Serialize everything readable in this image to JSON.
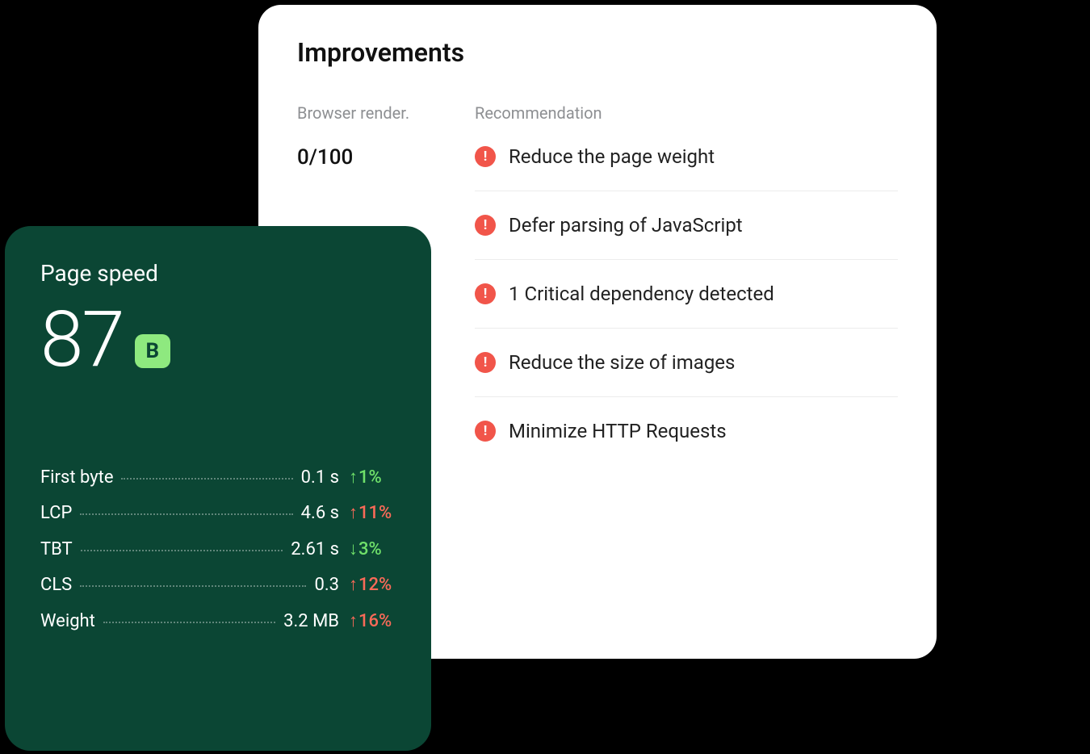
{
  "improvements": {
    "title": "Improvements",
    "columns": {
      "left_label": "Browser render.",
      "right_label": "Recommendation"
    },
    "render_score": "0/100",
    "alert_icon_color": "#f1554a",
    "recommendations": [
      {
        "text": "Reduce the page weight"
      },
      {
        "text": "Defer parsing of JavaScript"
      },
      {
        "text": "1 Critical dependency detected"
      },
      {
        "text": "Reduce the size of images"
      },
      {
        "text": "Minimize HTTP Requests"
      }
    ]
  },
  "page_speed": {
    "title": "Page speed",
    "score": "87",
    "grade": "B",
    "card_bg": "#0b4634",
    "grade_bg": "#8ee97f",
    "change_colors": {
      "up_good": "#6fe06a",
      "up_bad": "#f96a58",
      "down_good": "#6fe06a"
    },
    "metrics": [
      {
        "label": "First byte",
        "value": "0.1 s",
        "change": "1%",
        "arrow": "↑",
        "sentiment": "good"
      },
      {
        "label": "LCP",
        "value": "4.6 s",
        "change": "11%",
        "arrow": "↑",
        "sentiment": "bad"
      },
      {
        "label": "TBT",
        "value": "2.61 s",
        "change": "3%",
        "arrow": "↓",
        "sentiment": "good"
      },
      {
        "label": "CLS",
        "value": "0.3",
        "change": "12%",
        "arrow": "↑",
        "sentiment": "bad"
      },
      {
        "label": "Weight",
        "value": "3.2 MB",
        "change": "16%",
        "arrow": "↑",
        "sentiment": "bad"
      }
    ]
  }
}
